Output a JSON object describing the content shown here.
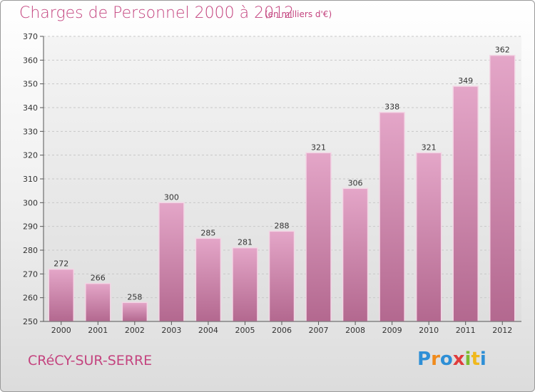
{
  "chart_data": {
    "type": "bar",
    "title": "Charges de Personnel 2000 à 2012",
    "subtitle": "(en milliers d'€)",
    "categories": [
      "2000",
      "2001",
      "2002",
      "2003",
      "2004",
      "2005",
      "2006",
      "2007",
      "2008",
      "2009",
      "2010",
      "2011",
      "2012"
    ],
    "values": [
      272,
      266,
      258,
      300,
      285,
      281,
      288,
      321,
      306,
      338,
      321,
      349,
      362
    ],
    "ylim": [
      250,
      370
    ],
    "yticks": [
      250,
      260,
      270,
      280,
      290,
      300,
      310,
      320,
      330,
      340,
      350,
      360,
      370
    ],
    "grid": true,
    "bar_color": "#d98cb6"
  },
  "footer": {
    "town": "CRéCY-SUR-SERRE",
    "logo_letters": [
      {
        "ch": "P",
        "color": "#2e8fd6"
      },
      {
        "ch": "r",
        "color": "#f08a1c"
      },
      {
        "ch": "o",
        "color": "#2e8fd6"
      },
      {
        "ch": "x",
        "color": "#e03c3c"
      },
      {
        "ch": "i",
        "color": "#7dbb2e"
      },
      {
        "ch": "t",
        "color": "#f0b81c"
      },
      {
        "ch": "i",
        "color": "#2e8fd6"
      }
    ]
  }
}
